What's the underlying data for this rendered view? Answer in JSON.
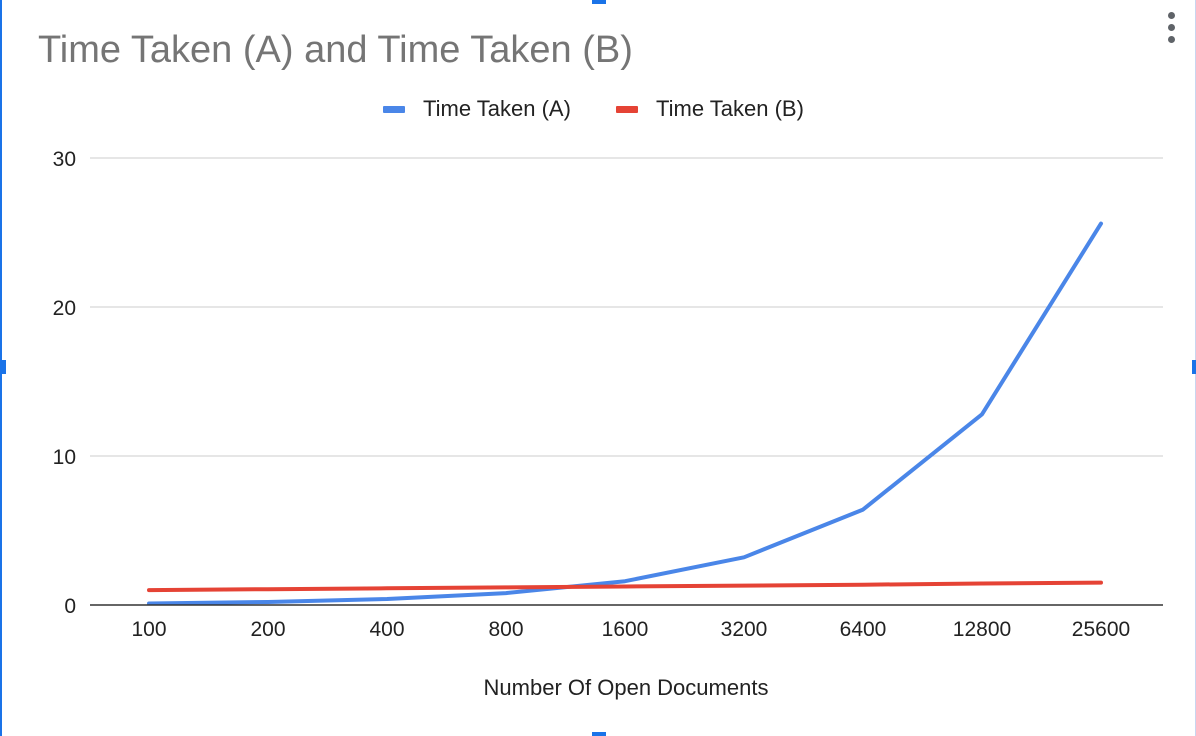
{
  "chart_data": {
    "type": "line",
    "title": "Time Taken (A) and Time Taken (B)",
    "xlabel": "Number Of Open Documents",
    "ylabel": "",
    "categories": [
      "100",
      "200",
      "400",
      "800",
      "1600",
      "3200",
      "6400",
      "12800",
      "25600"
    ],
    "series": [
      {
        "name": "Time Taken (A)",
        "color": "#4a86e8",
        "values": [
          0.1,
          0.2,
          0.4,
          0.8,
          1.6,
          3.2,
          6.4,
          12.8,
          25.6
        ]
      },
      {
        "name": "Time Taken (B)",
        "color": "#e54335",
        "values": [
          1.0,
          1.06,
          1.12,
          1.18,
          1.24,
          1.3,
          1.36,
          1.44,
          1.5
        ]
      }
    ],
    "yticks": [
      "0",
      "10",
      "20",
      "30"
    ],
    "ylim": [
      0,
      30
    ],
    "grid": true,
    "legend_position": "top"
  }
}
